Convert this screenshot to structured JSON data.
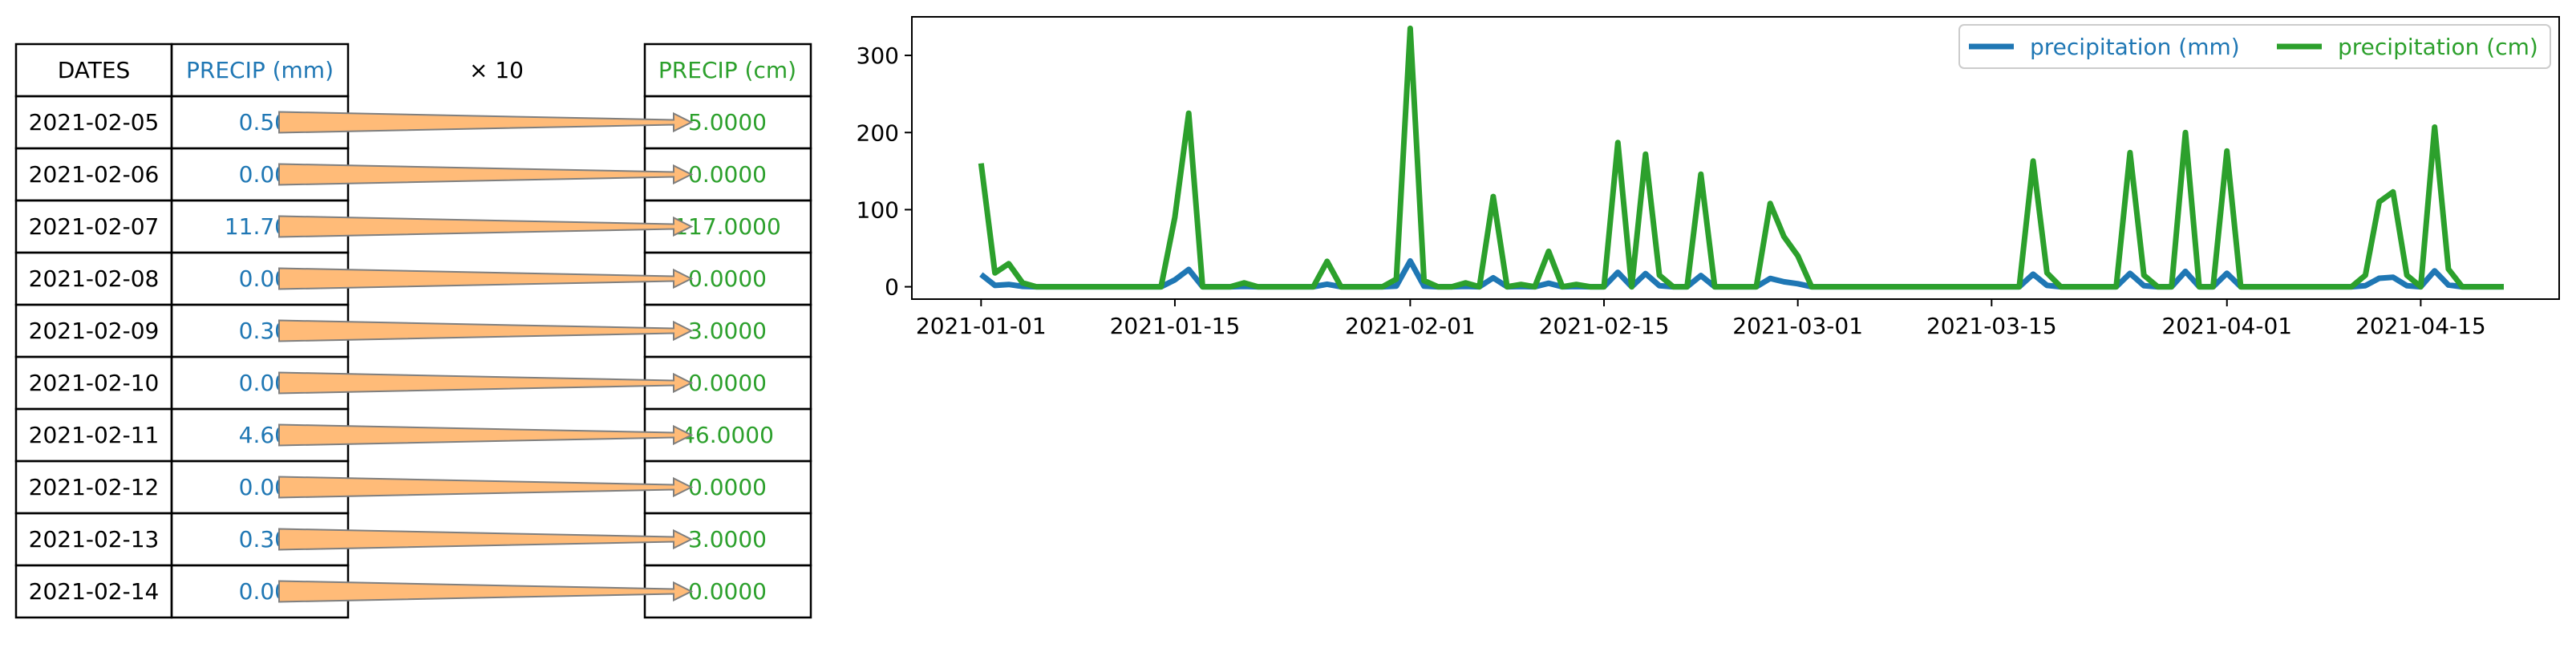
{
  "table": {
    "headers": {
      "dates": "DATES",
      "precip_mm": "PRECIP (mm)",
      "multiplier": "× 10",
      "precip_cm": "PRECIP (cm)"
    },
    "rows": [
      {
        "date": "2021-02-05",
        "mm": "0.50",
        "cm": "5.0000"
      },
      {
        "date": "2021-02-06",
        "mm": "0.00",
        "cm": "0.0000"
      },
      {
        "date": "2021-02-07",
        "mm": "11.70",
        "cm": "117.0000"
      },
      {
        "date": "2021-02-08",
        "mm": "0.00",
        "cm": "0.0000"
      },
      {
        "date": "2021-02-09",
        "mm": "0.30",
        "cm": "3.0000"
      },
      {
        "date": "2021-02-10",
        "mm": "0.00",
        "cm": "0.0000"
      },
      {
        "date": "2021-02-11",
        "mm": "4.60",
        "cm": "46.0000"
      },
      {
        "date": "2021-02-12",
        "mm": "0.00",
        "cm": "0.0000"
      },
      {
        "date": "2021-02-13",
        "mm": "0.30",
        "cm": "3.0000"
      },
      {
        "date": "2021-02-14",
        "mm": "0.00",
        "cm": "0.0000"
      }
    ]
  },
  "colors": {
    "mm": "#1f77b4",
    "cm": "#2ca02c",
    "arrow_fill": "#ffbb78",
    "arrow_edge": "#7f7f7f"
  },
  "chart_data": {
    "type": "line",
    "title": "",
    "xlabel": "",
    "ylabel": "",
    "legend_position": "top-right",
    "legend_columns": 2,
    "grid": false,
    "x": [
      "2021-01-01",
      "2021-01-02",
      "2021-01-03",
      "2021-01-04",
      "2021-01-05",
      "2021-01-06",
      "2021-01-07",
      "2021-01-08",
      "2021-01-09",
      "2021-01-10",
      "2021-01-11",
      "2021-01-12",
      "2021-01-13",
      "2021-01-14",
      "2021-01-15",
      "2021-01-16",
      "2021-01-17",
      "2021-01-18",
      "2021-01-19",
      "2021-01-20",
      "2021-01-21",
      "2021-01-22",
      "2021-01-23",
      "2021-01-24",
      "2021-01-25",
      "2021-01-26",
      "2021-01-27",
      "2021-01-28",
      "2021-01-29",
      "2021-01-30",
      "2021-01-31",
      "2021-02-01",
      "2021-02-02",
      "2021-02-03",
      "2021-02-04",
      "2021-02-05",
      "2021-02-06",
      "2021-02-07",
      "2021-02-08",
      "2021-02-09",
      "2021-02-10",
      "2021-02-11",
      "2021-02-12",
      "2021-02-13",
      "2021-02-14",
      "2021-02-15",
      "2021-02-16",
      "2021-02-17",
      "2021-02-18",
      "2021-02-19",
      "2021-02-20",
      "2021-02-21",
      "2021-02-22",
      "2021-02-23",
      "2021-02-24",
      "2021-02-25",
      "2021-02-26",
      "2021-02-27",
      "2021-02-28",
      "2021-03-01",
      "2021-03-02",
      "2021-03-03",
      "2021-03-04",
      "2021-03-05",
      "2021-03-06",
      "2021-03-07",
      "2021-03-08",
      "2021-03-09",
      "2021-03-10",
      "2021-03-11",
      "2021-03-12",
      "2021-03-13",
      "2021-03-14",
      "2021-03-15",
      "2021-03-16",
      "2021-03-17",
      "2021-03-18",
      "2021-03-19",
      "2021-03-20",
      "2021-03-21",
      "2021-03-22",
      "2021-03-23",
      "2021-03-24",
      "2021-03-25",
      "2021-03-26",
      "2021-03-27",
      "2021-03-28",
      "2021-03-29",
      "2021-03-30",
      "2021-03-31",
      "2021-04-01",
      "2021-04-02",
      "2021-04-03",
      "2021-04-04",
      "2021-04-05",
      "2021-04-06",
      "2021-04-07",
      "2021-04-08",
      "2021-04-09",
      "2021-04-10",
      "2021-04-11",
      "2021-04-12",
      "2021-04-13",
      "2021-04-14",
      "2021-04-15",
      "2021-04-16",
      "2021-04-17",
      "2021-04-18",
      "2021-04-19",
      "2021-04-20",
      "2021-04-21"
    ],
    "series": [
      {
        "name": "precipitation (mm)",
        "color": "#1f77b4",
        "values": [
          16.0,
          1.8,
          3.0,
          0.5,
          0,
          0,
          0,
          0,
          0,
          0,
          0,
          0,
          0,
          0,
          9.0,
          22.5,
          0,
          0,
          0,
          0.5,
          0,
          0,
          0,
          0,
          0,
          3.3,
          0,
          0,
          0,
          0,
          1.0,
          33.5,
          0.8,
          0,
          0,
          0.5,
          0,
          11.7,
          0,
          0.3,
          0,
          4.6,
          0,
          0.3,
          0,
          0,
          18.7,
          0,
          17.2,
          1.5,
          0,
          0,
          14.6,
          0,
          0,
          0,
          0,
          10.8,
          6.5,
          4.0,
          0,
          0,
          0,
          0,
          0,
          0,
          0,
          0,
          0,
          0,
          0,
          0,
          0,
          0,
          0,
          0,
          16.3,
          1.8,
          0,
          0,
          0,
          0,
          0,
          17.4,
          1.5,
          0,
          0,
          20.0,
          0,
          0,
          17.6,
          0,
          0,
          0,
          0,
          0,
          0,
          0,
          0,
          0,
          1.5,
          11.0,
          12.3,
          1.5,
          0,
          20.7,
          2.3,
          0,
          0,
          0,
          0
        ]
      },
      {
        "name": "precipitation (cm)",
        "color": "#2ca02c",
        "values": [
          160,
          18,
          30,
          5,
          0,
          0,
          0,
          0,
          0,
          0,
          0,
          0,
          0,
          0,
          90,
          225,
          0,
          0,
          0,
          5,
          0,
          0,
          0,
          0,
          0,
          33,
          0,
          0,
          0,
          0,
          10,
          335,
          8,
          0,
          0,
          5,
          0,
          117,
          0,
          3,
          0,
          46,
          0,
          3,
          0,
          0,
          187,
          0,
          172,
          15,
          0,
          0,
          146,
          0,
          0,
          0,
          0,
          108,
          65,
          40,
          0,
          0,
          0,
          0,
          0,
          0,
          0,
          0,
          0,
          0,
          0,
          0,
          0,
          0,
          0,
          0,
          163,
          18,
          0,
          0,
          0,
          0,
          0,
          174,
          15,
          0,
          0,
          200,
          0,
          0,
          176,
          0,
          0,
          0,
          0,
          0,
          0,
          0,
          0,
          0,
          15,
          110,
          123,
          15,
          0,
          207,
          23,
          0,
          0,
          0,
          0
        ]
      }
    ],
    "x_ticks": [
      "2021-01-01",
      "2021-01-15",
      "2021-02-01",
      "2021-02-15",
      "2021-03-01",
      "2021-03-15",
      "2021-04-01",
      "2021-04-15"
    ],
    "y_ticks": [
      0,
      100,
      200,
      300
    ],
    "xlim": [
      "2020-12-27",
      "2021-04-25"
    ],
    "ylim": [
      -16,
      350
    ]
  }
}
